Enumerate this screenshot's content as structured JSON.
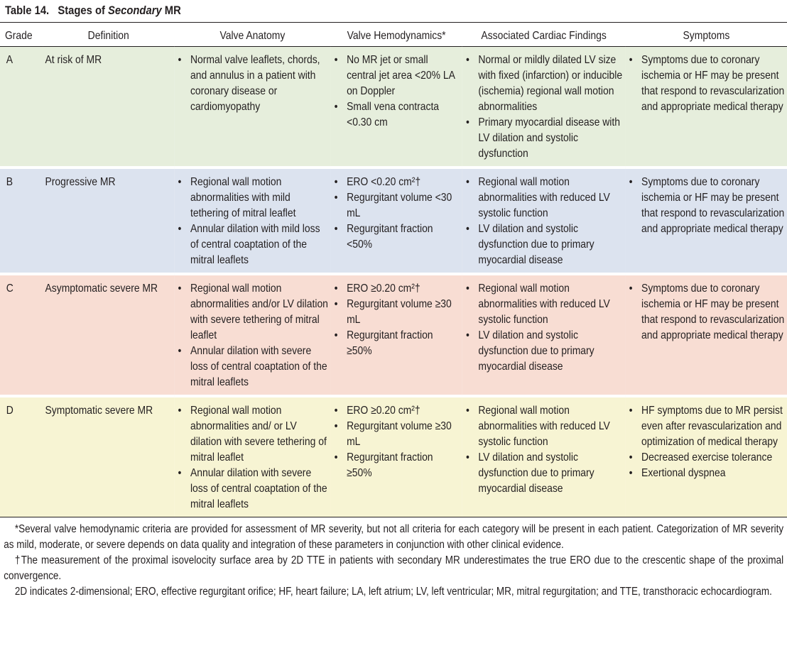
{
  "title": {
    "label": "Table 14.",
    "prefix": "Stages of",
    "emphasis": "Secondary",
    "suffix": "MR"
  },
  "table": {
    "headers": [
      "Grade",
      "Definition",
      "Valve Anatomy",
      "Valve Hemodynamics*",
      "Associated Cardiac Findings",
      "Symptoms"
    ],
    "rows": [
      {
        "grade": "A",
        "definition": "At risk of MR",
        "anatomy": [
          "Normal valve leaflets, chords, and annulus in a patient with coronary disease or cardiomyopathy"
        ],
        "hemodynamics": [
          "No MR jet or small central jet area <20% LA on Doppler",
          "Small vena contracta <0.30 cm"
        ],
        "findings": [
          "Normal or mildly dilated LV size with fixed (infarction) or inducible (ischemia) regional wall motion abnormalities",
          "Primary myocardial disease with LV dilation and systolic dysfunction"
        ],
        "symptoms": [
          "Symptoms due to coronary ischemia or HF may be present that respond to revascularization and appropriate medical therapy"
        ]
      },
      {
        "grade": "B",
        "definition": "Progressive MR",
        "anatomy": [
          "Regional wall motion abnormalities with mild tethering of mitral leaflet",
          "Annular dilation with mild loss of central coaptation of the mitral leaflets"
        ],
        "hemodynamics": [
          "ERO <0.20 cm²†",
          "Regurgitant volume <30 mL",
          "Regurgitant fraction <50%"
        ],
        "findings": [
          "Regional wall motion abnormalities with reduced LV systolic function",
          "LV dilation and systolic dysfunction due to primary myocardial disease"
        ],
        "symptoms": [
          "Symptoms due to coronary ischemia or HF may be present that respond to revascularization and appropriate medical therapy"
        ]
      },
      {
        "grade": "C",
        "definition": "Asymptomatic severe MR",
        "anatomy": [
          "Regional wall motion abnormalities and/or LV dilation with severe tethering of mitral leaflet",
          "Annular dilation with severe loss of central coaptation of the mitral leaflets"
        ],
        "hemodynamics": [
          "ERO ≥0.20 cm²†",
          "Regurgitant volume ≥30 mL",
          "Regurgitant fraction ≥50%"
        ],
        "findings": [
          "Regional wall motion abnormalities with reduced LV systolic function",
          "LV dilation and systolic dysfunction due to primary myocardial disease"
        ],
        "symptoms": [
          "Symptoms due to coronary ischemia or HF may be present that respond to revascularization and appropriate medical therapy"
        ]
      },
      {
        "grade": "D",
        "definition": "Symptomatic severe MR",
        "anatomy": [
          "Regional wall motion abnormalities and/ or LV dilation with severe tethering of mitral leaflet",
          "Annular dilation with severe loss of central coaptation of the mitral leaflets"
        ],
        "hemodynamics": [
          "ERO ≥0.20 cm²†",
          "Regurgitant volume ≥30 mL",
          "Regurgitant fraction ≥50%"
        ],
        "findings": [
          "Regional wall motion abnormalities with reduced LV systolic function",
          "LV dilation and systolic dysfunction due to primary myocardial disease"
        ],
        "symptoms": [
          "HF symptoms due to MR persist even after revascularization and optimization of medical therapy",
          "Decreased exercise tolerance",
          "Exertional dyspnea"
        ]
      }
    ]
  },
  "footnotes": [
    "*Several valve hemodynamic criteria are provided for assessment of MR severity, but not all criteria for each category will be present in each patient. Categorization of MR severity as mild, moderate, or severe depends on data quality and integration of these parameters in conjunction with other clinical evidence.",
    "†The measurement of the proximal isovelocity surface area by 2D TTE in patients with secondary MR underestimates the true ERO due to the crescentic shape of the proximal convergence.",
    "2D indicates 2-dimensional; ERO, effective regurgitant orifice; HF, heart failure; LA, left atrium; LV, left ventricular; MR, mitral regurgitation; and TTE, transthoracic echocardiogram."
  ]
}
